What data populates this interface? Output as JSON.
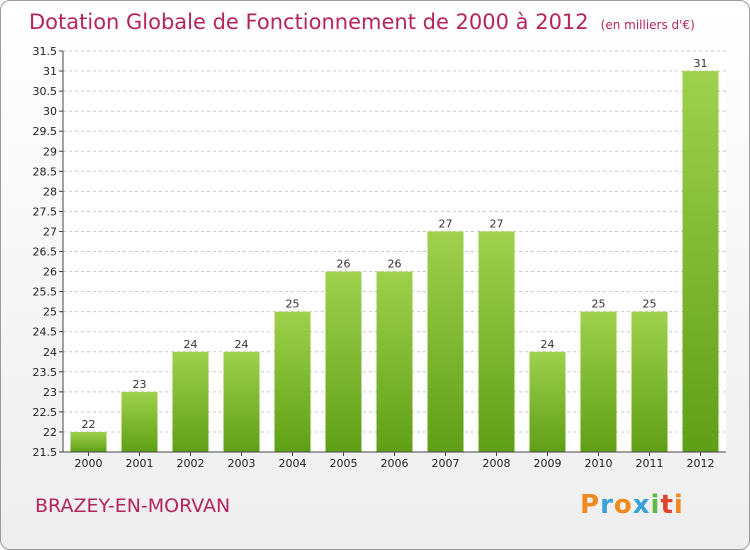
{
  "header": {
    "title": "Dotation Globale de Fonctionnement de 2000 à 2012",
    "subtitle": "(en milliers d'€)"
  },
  "footer": {
    "town": "BRAZEY-EN-MORVAN",
    "logo_text": "Proxiti",
    "logo_colors": [
      "#f08a1e",
      "#3aa0d8",
      "#f08a1e",
      "#3aa0d8",
      "#5dbb46",
      "#e0422b",
      "#f08a1e"
    ]
  },
  "chart_data": {
    "type": "bar",
    "categories": [
      "2000",
      "2001",
      "2002",
      "2003",
      "2004",
      "2005",
      "2006",
      "2007",
      "2008",
      "2009",
      "2010",
      "2011",
      "2012"
    ],
    "values": [
      22,
      23,
      24,
      24,
      25,
      26,
      26,
      27,
      27,
      24,
      25,
      25,
      31
    ],
    "data_labels": [
      "22",
      "23",
      "24",
      "24",
      "25",
      "26",
      "26",
      "27",
      "27",
      "24",
      "25",
      "25",
      "31"
    ],
    "title": "Dotation Globale de Fonctionnement de 2000 à 2012",
    "subtitle": "(en milliers d'€)",
    "xlabel": "",
    "ylabel": "",
    "ylim": [
      21.5,
      31.5
    ],
    "yticks": [
      "21.5",
      "22",
      "22.5",
      "23",
      "23.5",
      "24",
      "24.5",
      "25",
      "25.5",
      "26",
      "26.5",
      "27",
      "27.5",
      "28",
      "28.5",
      "29",
      "29.5",
      "30",
      "30.5",
      "31",
      "31.5"
    ],
    "grid": "horizontal dashed",
    "bar_color_top": "#9fd14d",
    "bar_color_bottom": "#5f9f16"
  }
}
